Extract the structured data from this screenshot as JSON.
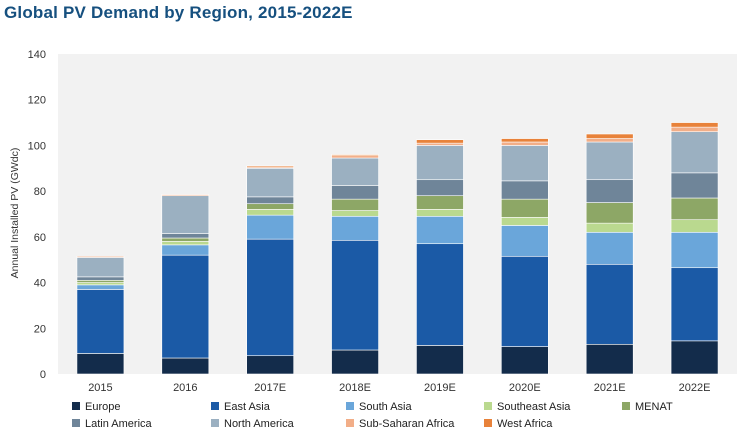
{
  "chart_data": {
    "type": "bar",
    "stacked": true,
    "title": "Global PV Demand by Region, 2015-2022E",
    "xlabel": "",
    "ylabel": "Annual Installed PV (GWdc)",
    "ylim": [
      0,
      140
    ],
    "yticks": [
      0,
      20,
      40,
      60,
      80,
      100,
      120,
      140
    ],
    "grid": false,
    "legend_position": "bottom",
    "categories": [
      "2015",
      "2016",
      "2017E",
      "2018E",
      "2019E",
      "2020E",
      "2021E",
      "2022E"
    ],
    "series": [
      {
        "name": "Europe",
        "color": "#132c4b",
        "values": [
          9,
          7,
          8,
          10.5,
          12.5,
          12,
          13,
          14.5
        ]
      },
      {
        "name": "East Asia",
        "color": "#1b5aa6",
        "values": [
          28,
          45,
          51,
          48,
          44.5,
          39.5,
          35,
          32
        ]
      },
      {
        "name": "South Asia",
        "color": "#6aa6da",
        "values": [
          2,
          4.5,
          10.5,
          10.5,
          12,
          13.5,
          14,
          15.5
        ]
      },
      {
        "name": "Southeast Asia",
        "color": "#bad98f",
        "values": [
          1,
          1.5,
          2.5,
          2.5,
          3,
          3.5,
          4,
          5.5
        ]
      },
      {
        "name": "MENAT",
        "color": "#8da766",
        "values": [
          1,
          1.5,
          2.5,
          5,
          6,
          8,
          9,
          9.5
        ]
      },
      {
        "name": "Latin America",
        "color": "#6f8599",
        "values": [
          1.5,
          2,
          3,
          6,
          7,
          8,
          10,
          11
        ]
      },
      {
        "name": "North America",
        "color": "#9bb0c1",
        "values": [
          8.5,
          16.5,
          12.5,
          12,
          15,
          15.5,
          16.5,
          18
        ]
      },
      {
        "name": "Sub-Saharan Africa",
        "color": "#f2ae88",
        "values": [
          0.5,
          0.5,
          0.5,
          1,
          1,
          1.5,
          1.5,
          2
        ]
      },
      {
        "name": "West Africa",
        "color": "#e8823a",
        "values": [
          0,
          0,
          0.5,
          0.5,
          1.5,
          1.5,
          2,
          2
        ]
      }
    ]
  }
}
